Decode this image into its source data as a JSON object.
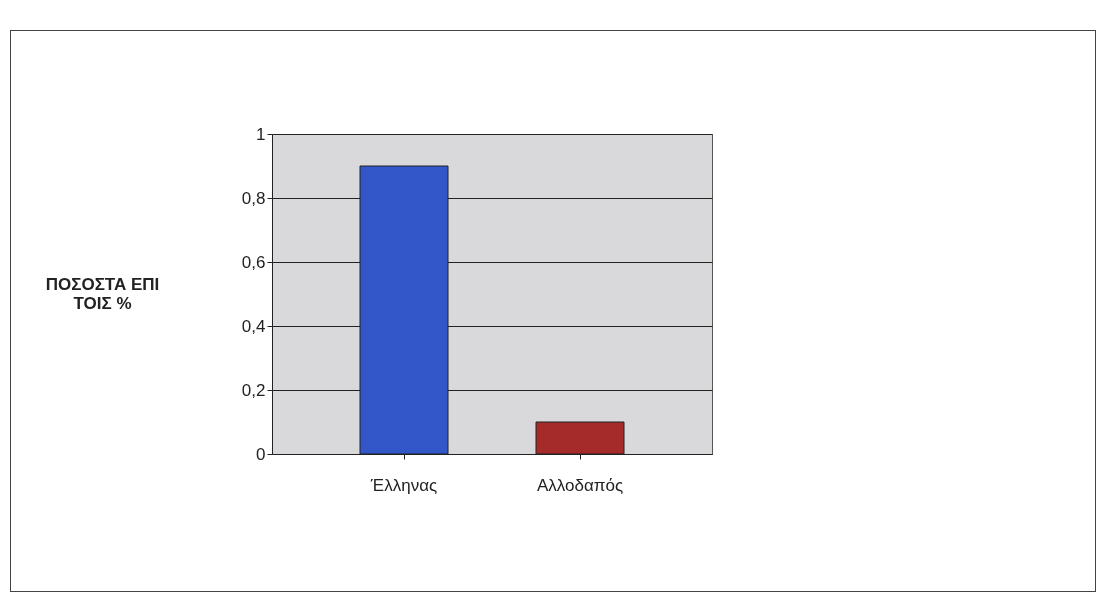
{
  "chart_data": {
    "type": "bar",
    "ylabel": "ΠΟΣΟΣΤΑ ΕΠΙ ΤΟΙΣ %",
    "categories": [
      "Έλληνας",
      "Αλλοδαπός"
    ],
    "colors": [
      "#3356c8",
      "#a52a2a"
    ],
    "values": [
      0.9,
      0.1
    ],
    "ylim": [
      0,
      1
    ],
    "yticks": [
      {
        "value": 0,
        "label": "0"
      },
      {
        "value": 0.2,
        "label": "0,2"
      },
      {
        "value": 0.4,
        "label": "0,4"
      },
      {
        "value": 0.6,
        "label": "0,6"
      },
      {
        "value": 0.8,
        "label": "0,8"
      },
      {
        "value": 1,
        "label": "1"
      }
    ],
    "grid": "y"
  }
}
